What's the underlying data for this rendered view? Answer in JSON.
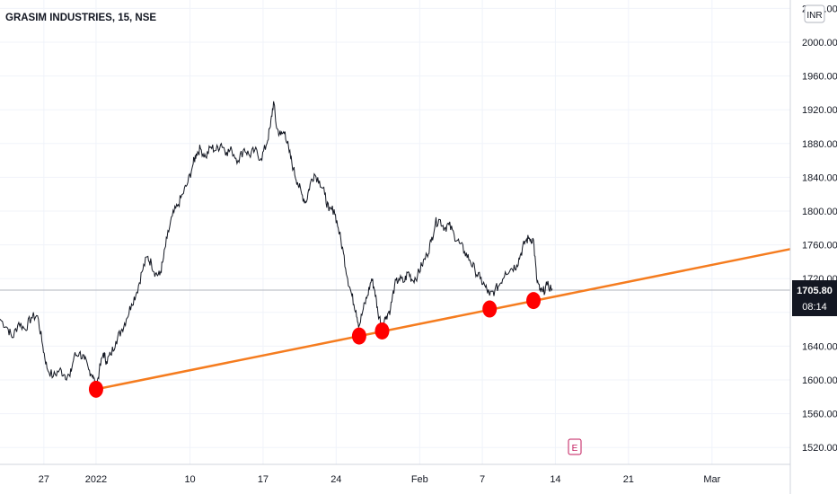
{
  "chart_data": {
    "type": "line",
    "title": "GRASIM INDUSTRIES, 15, NSE",
    "currency": "INR",
    "last_price": "1705.80",
    "countdown": "08:14",
    "event_marker": "E",
    "y_ticks": [
      "1520.00",
      "1560.00",
      "1600.00",
      "1640.00",
      "1680.00",
      "1720.00",
      "1760.00",
      "1800.00",
      "1840.00",
      "1880.00",
      "1920.00",
      "1960.00",
      "2000.00",
      "2040.00"
    ],
    "ylim": [
      1500,
      2050
    ],
    "x_ticks": [
      {
        "label": "27",
        "x": 0
      },
      {
        "label": "2022",
        "x": 5
      },
      {
        "label": "10",
        "x": 14
      },
      {
        "label": "17",
        "x": 21
      },
      {
        "label": "24",
        "x": 28
      },
      {
        "label": "Feb",
        "x": 36
      },
      {
        "label": "7",
        "x": 42
      },
      {
        "label": "14",
        "x": 49
      },
      {
        "label": "21",
        "x": 56
      },
      {
        "label": "Mar",
        "x": 64
      }
    ],
    "xlim": [
      -4.2,
      71.5
    ],
    "series": [
      {
        "values": [
          [
            -4.2,
            1672
          ],
          [
            -3.5,
            1662
          ],
          [
            -3.0,
            1650
          ],
          [
            -2.4,
            1668
          ],
          [
            -1.8,
            1660
          ],
          [
            -1.2,
            1674
          ],
          [
            -0.6,
            1676
          ],
          [
            -0.1,
            1640
          ],
          [
            0.3,
            1614
          ],
          [
            0.9,
            1604
          ],
          [
            1.5,
            1612
          ],
          [
            2.0,
            1606
          ],
          [
            2.5,
            1604
          ],
          [
            2.9,
            1628
          ],
          [
            3.4,
            1632
          ],
          [
            3.9,
            1624
          ],
          [
            4.3,
            1612
          ],
          [
            4.7,
            1606
          ],
          [
            5.0,
            1590
          ],
          [
            5.3,
            1610
          ],
          [
            5.7,
            1632
          ],
          [
            6.0,
            1622
          ],
          [
            6.4,
            1630
          ],
          [
            6.9,
            1646
          ],
          [
            7.4,
            1658
          ],
          [
            7.9,
            1672
          ],
          [
            8.4,
            1690
          ],
          [
            8.9,
            1704
          ],
          [
            9.4,
            1728
          ],
          [
            9.9,
            1746
          ],
          [
            10.3,
            1738
          ],
          [
            10.7,
            1726
          ],
          [
            11.1,
            1724
          ],
          [
            11.4,
            1740
          ],
          [
            11.8,
            1768
          ],
          [
            12.3,
            1794
          ],
          [
            12.8,
            1806
          ],
          [
            13.3,
            1820
          ],
          [
            13.8,
            1834
          ],
          [
            14.3,
            1856
          ],
          [
            14.6,
            1868
          ],
          [
            15.0,
            1874
          ],
          [
            15.5,
            1864
          ],
          [
            16.0,
            1876
          ],
          [
            16.5,
            1872
          ],
          [
            17.0,
            1880
          ],
          [
            17.5,
            1870
          ],
          [
            18.0,
            1872
          ],
          [
            18.6,
            1860
          ],
          [
            19.2,
            1874
          ],
          [
            19.7,
            1866
          ],
          [
            20.2,
            1872
          ],
          [
            20.8,
            1862
          ],
          [
            21.3,
            1878
          ],
          [
            21.7,
            1900
          ],
          [
            22.0,
            1930
          ],
          [
            22.3,
            1898
          ],
          [
            22.7,
            1890
          ],
          [
            23.1,
            1894
          ],
          [
            23.5,
            1870
          ],
          [
            23.9,
            1850
          ],
          [
            24.3,
            1834
          ],
          [
            24.7,
            1820
          ],
          [
            25.1,
            1810
          ],
          [
            25.5,
            1832
          ],
          [
            25.9,
            1844
          ],
          [
            26.4,
            1836
          ],
          [
            26.9,
            1820
          ],
          [
            27.3,
            1800
          ],
          [
            27.8,
            1802
          ],
          [
            28.2,
            1780
          ],
          [
            28.7,
            1750
          ],
          [
            29.1,
            1720
          ],
          [
            29.5,
            1700
          ],
          [
            29.9,
            1682
          ],
          [
            30.2,
            1664
          ],
          [
            30.6,
            1684
          ],
          [
            31.0,
            1700
          ],
          [
            31.4,
            1720
          ],
          [
            31.7,
            1706
          ],
          [
            32.0,
            1680
          ],
          [
            32.4,
            1664
          ],
          [
            32.8,
            1676
          ],
          [
            33.2,
            1684
          ],
          [
            33.6,
            1712
          ],
          [
            34.0,
            1720
          ],
          [
            34.5,
            1716
          ],
          [
            34.9,
            1728
          ],
          [
            35.3,
            1718
          ],
          [
            35.8,
            1724
          ],
          [
            36.2,
            1736
          ],
          [
            36.7,
            1748
          ],
          [
            37.1,
            1764
          ],
          [
            37.5,
            1786
          ],
          [
            37.9,
            1790
          ],
          [
            38.4,
            1780
          ],
          [
            38.8,
            1784
          ],
          [
            39.3,
            1772
          ],
          [
            39.8,
            1762
          ],
          [
            40.3,
            1752
          ],
          [
            40.8,
            1742
          ],
          [
            41.3,
            1730
          ],
          [
            41.8,
            1720
          ],
          [
            42.3,
            1710
          ],
          [
            42.7,
            1700
          ],
          [
            43.2,
            1706
          ],
          [
            43.7,
            1714
          ],
          [
            44.2,
            1728
          ],
          [
            44.8,
            1732
          ],
          [
            45.3,
            1736
          ],
          [
            45.7,
            1750
          ],
          [
            46.1,
            1764
          ],
          [
            46.5,
            1768
          ],
          [
            46.9,
            1766
          ],
          [
            47.2,
            1720
          ],
          [
            47.5,
            1706
          ],
          [
            47.8,
            1704
          ],
          [
            48.2,
            1712
          ],
          [
            48.7,
            1708
          ]
        ]
      }
    ],
    "trendline": {
      "start": [
        5.0,
        1589
      ],
      "end": [
        71.5,
        1755
      ],
      "color": "#f57c1f"
    },
    "touch_points": [
      {
        "x": 5.0,
        "y": 1589
      },
      {
        "x": 30.2,
        "y": 1652
      },
      {
        "x": 32.4,
        "y": 1658
      },
      {
        "x": 42.7,
        "y": 1684
      },
      {
        "x": 46.9,
        "y": 1694
      }
    ],
    "grid": true,
    "colors": {
      "line": "#131722",
      "trend": "#f57c1f",
      "marker": "#ff0000",
      "price_tag": "#131722"
    }
  }
}
